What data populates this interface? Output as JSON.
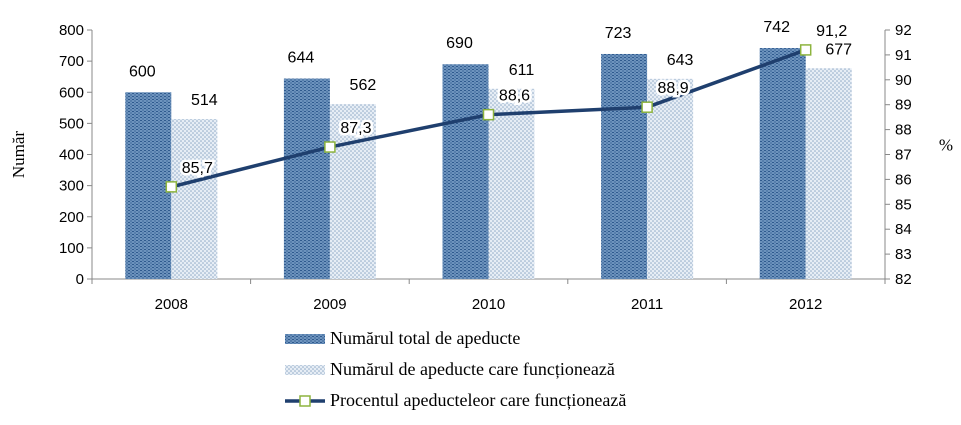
{
  "chart_data": {
    "type": "bar",
    "categories": [
      "2008",
      "2009",
      "2010",
      "2011",
      "2012"
    ],
    "series": [
      {
        "name": "Numărul total de apeducte",
        "type": "bar",
        "axis": "left",
        "color": "#4f7aa8",
        "values": [
          600,
          644,
          690,
          723,
          742
        ],
        "labels": [
          "600",
          "644",
          "690",
          "723",
          "742"
        ]
      },
      {
        "name": "Numărul de apeducte care funcționează",
        "type": "bar",
        "axis": "left",
        "color": "#b9c9dc",
        "values": [
          514,
          562,
          611,
          643,
          677
        ],
        "labels": [
          "514",
          "562",
          "611",
          "643",
          "677"
        ]
      },
      {
        "name": "Procentul apeducteleor care funcționează",
        "type": "line",
        "axis": "right",
        "color": "#1f3f6e",
        "marker_color": "#8db43e",
        "values": [
          85.7,
          87.3,
          88.6,
          88.9,
          91.2
        ],
        "labels": [
          "85,7",
          "87,3",
          "88,6",
          "88,9",
          "91,2"
        ]
      }
    ],
    "ylabel": "Număr",
    "y2label": "%",
    "ylim": [
      0,
      800
    ],
    "yticks": [
      "0",
      "100",
      "200",
      "300",
      "400",
      "500",
      "600",
      "700",
      "800"
    ],
    "y2lim": [
      82,
      92
    ],
    "y2ticks": [
      "82",
      "83",
      "84",
      "85",
      "86",
      "87",
      "88",
      "89",
      "90",
      "91",
      "92"
    ],
    "legend_position": "bottom"
  }
}
